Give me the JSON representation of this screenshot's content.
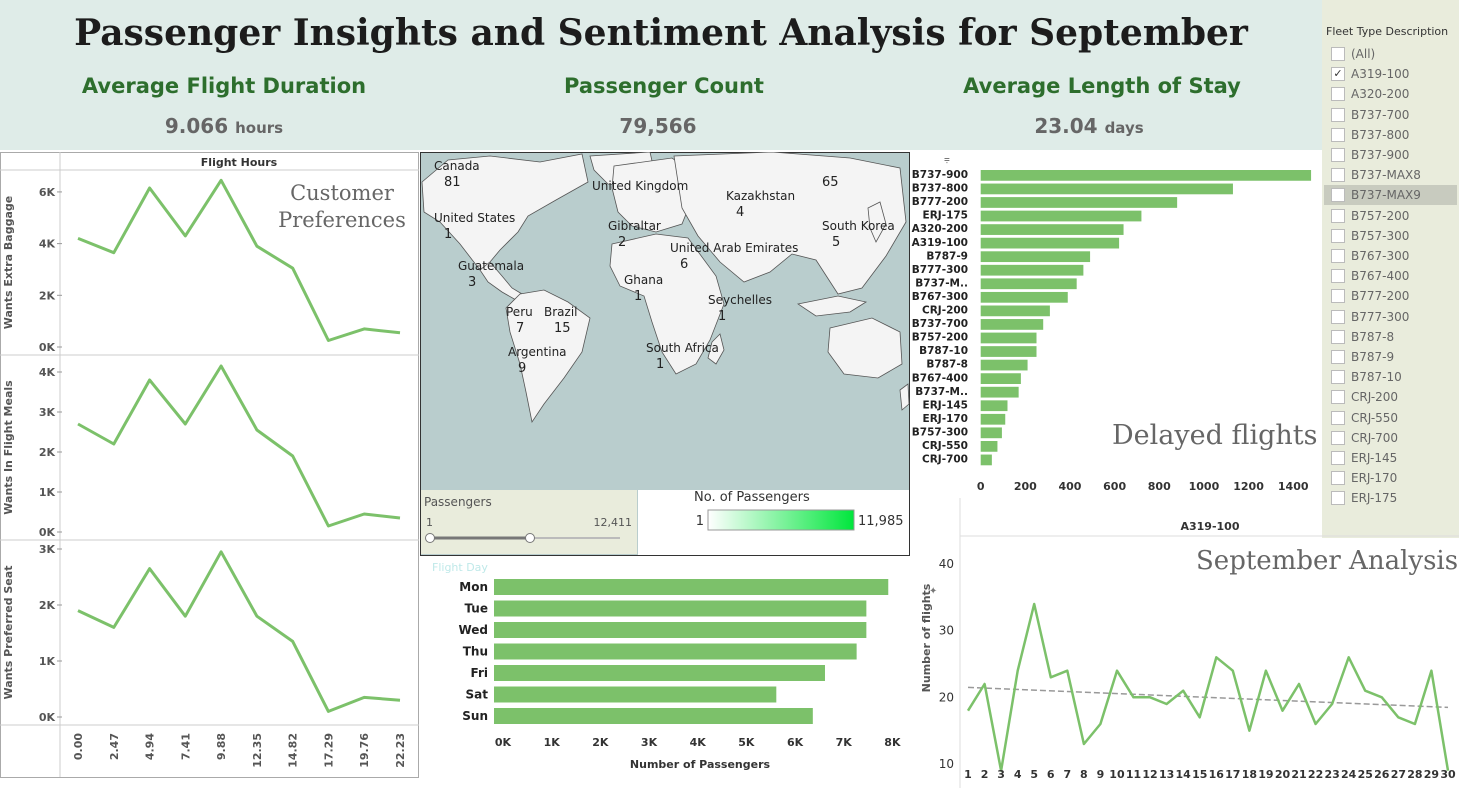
{
  "title": "Passenger Insights and Sentiment Analysis for September",
  "kpis": {
    "flight_duration": {
      "label": "Average Flight Duration",
      "value": "9.066",
      "unit": "hours"
    },
    "passenger_count": {
      "label": "Passenger Count",
      "value": "79,566"
    },
    "length_of_stay": {
      "label": "Average Length of Stay",
      "value": "23.04",
      "unit": "days"
    }
  },
  "filter": {
    "title": "Fleet Type Description",
    "items": [
      {
        "label": "(All)",
        "checked": false,
        "highlighted": false
      },
      {
        "label": "A319-100",
        "checked": true,
        "highlighted": false
      },
      {
        "label": "A320-200",
        "checked": false,
        "highlighted": false
      },
      {
        "label": "B737-700",
        "checked": false,
        "highlighted": false
      },
      {
        "label": "B737-800",
        "checked": false,
        "highlighted": false
      },
      {
        "label": "B737-900",
        "checked": false,
        "highlighted": false
      },
      {
        "label": "B737-MAX8",
        "checked": false,
        "highlighted": false
      },
      {
        "label": "B737-MAX9",
        "checked": false,
        "highlighted": true
      },
      {
        "label": "B757-200",
        "checked": false,
        "highlighted": false
      },
      {
        "label": "B757-300",
        "checked": false,
        "highlighted": false
      },
      {
        "label": "B767-300",
        "checked": false,
        "highlighted": false
      },
      {
        "label": "B767-400",
        "checked": false,
        "highlighted": false
      },
      {
        "label": "B777-200",
        "checked": false,
        "highlighted": false
      },
      {
        "label": "B777-300",
        "checked": false,
        "highlighted": false
      },
      {
        "label": "B787-8",
        "checked": false,
        "highlighted": false
      },
      {
        "label": "B787-9",
        "checked": false,
        "highlighted": false
      },
      {
        "label": "B787-10",
        "checked": false,
        "highlighted": false
      },
      {
        "label": "CRJ-200",
        "checked": false,
        "highlighted": false
      },
      {
        "label": "CRJ-550",
        "checked": false,
        "highlighted": false
      },
      {
        "label": "CRJ-700",
        "checked": false,
        "highlighted": false
      },
      {
        "label": "ERJ-145",
        "checked": false,
        "highlighted": false
      },
      {
        "label": "ERJ-170",
        "checked": false,
        "highlighted": false
      },
      {
        "label": "ERJ-175",
        "checked": false,
        "highlighted": false
      }
    ]
  },
  "overlays": {
    "customer_preferences": "Customer Preferences",
    "customer_preferences_line1": "Customer",
    "customer_preferences_line2": "Preferences",
    "delayed_flights": "Delayed flights",
    "september_analysis": "September Analysis"
  },
  "map": {
    "labels": [
      {
        "name": "Canada",
        "value": "81"
      },
      {
        "name": "United States",
        "value": "1"
      },
      {
        "name": "Guatemala",
        "value": "3"
      },
      {
        "name": "Peru",
        "value": "7"
      },
      {
        "name": "Brazil",
        "value": "15"
      },
      {
        "name": "Argentina",
        "value": "9"
      },
      {
        "name": "United Kingdom",
        "value": ""
      },
      {
        "name": "Gibraltar",
        "value": "2"
      },
      {
        "name": "Ghana",
        "value": "1"
      },
      {
        "name": "Kazakhstan",
        "value": "4"
      },
      {
        "name": "United Arab Emirates",
        "value": "6"
      },
      {
        "name": "Seychelles",
        "value": "1"
      },
      {
        "name": "South Africa",
        "value": "1"
      },
      {
        "name": "South Korea",
        "value": "5"
      },
      {
        "name": "",
        "value": "65"
      }
    ],
    "passengers_filter": {
      "label": "Passengers",
      "min": "1",
      "max": "12,411"
    },
    "legend": {
      "label": "No. of Passengers",
      "min": "1",
      "max": "11,985",
      "color_low": "#ffffff",
      "color_high": "#00e63c"
    }
  },
  "chart_data": [
    {
      "id": "customer_preferences",
      "type": "line",
      "title": "Flight Hours",
      "x": [
        0.0,
        2.47,
        4.94,
        7.41,
        9.88,
        12.35,
        14.82,
        17.29,
        19.76,
        22.23
      ],
      "x_tick_labels": [
        "0.00",
        "2.47",
        "4.94",
        "7.41",
        "9.88",
        "12.35",
        "14.82",
        "17.29",
        "19.76",
        "22.23"
      ],
      "color": "#7cc16a",
      "panels": [
        {
          "ylabel": "Wants Extra Baggage",
          "ylim": [
            0,
            6500
          ],
          "yticks": [
            0,
            2000,
            4000,
            6000
          ],
          "ytick_labels": [
            "0K",
            "2K",
            "4K",
            "6K"
          ],
          "values": [
            4200,
            3650,
            6150,
            4300,
            6450,
            3900,
            3050,
            250,
            700,
            550
          ]
        },
        {
          "ylabel": "Wants In Flight Meals",
          "ylim": [
            0,
            4200
          ],
          "yticks": [
            0,
            1000,
            2000,
            3000,
            4000
          ],
          "ytick_labels": [
            "0K",
            "1K",
            "2K",
            "3K",
            "4K"
          ],
          "values": [
            2700,
            2200,
            3800,
            2700,
            4150,
            2550,
            1900,
            150,
            450,
            350
          ]
        },
        {
          "ylabel": "Wants Preferred Seat",
          "ylim": [
            0,
            3000
          ],
          "yticks": [
            0,
            1000,
            2000,
            3000
          ],
          "ytick_labels": [
            "0K",
            "1K",
            "2K",
            "3K"
          ],
          "values": [
            1900,
            1600,
            2650,
            1800,
            2950,
            1800,
            1350,
            100,
            350,
            300
          ]
        }
      ]
    },
    {
      "id": "delayed_flights",
      "type": "bar",
      "orientation": "horizontal",
      "categories": [
        "B737-900",
        "B737-800",
        "B777-200",
        "ERJ-175",
        "A320-200",
        "A319-100",
        "B787-9",
        "B777-300",
        "B737-M..",
        "B767-300",
        "CRJ-200",
        "B737-700",
        "B757-200",
        "B787-10",
        "B787-8",
        "B767-400",
        "B737-M..",
        "ERJ-145",
        "ERJ-170",
        "B757-300",
        "CRJ-550",
        "CRJ-700"
      ],
      "values": [
        1480,
        1130,
        880,
        720,
        640,
        620,
        490,
        460,
        430,
        390,
        310,
        280,
        250,
        250,
        210,
        180,
        170,
        120,
        110,
        95,
        75,
        50
      ],
      "xlim": [
        -30,
        1520
      ],
      "xticks": [
        0,
        200,
        400,
        600,
        800,
        1000,
        1200,
        1400
      ],
      "color": "#7cc16a"
    },
    {
      "id": "flight_day",
      "type": "bar",
      "orientation": "horizontal",
      "title": "Flight Day",
      "categories": [
        "Mon",
        "Tue",
        "Wed",
        "Thu",
        "Fri",
        "Sat",
        "Sun"
      ],
      "values": [
        8100,
        7650,
        7650,
        7450,
        6800,
        5800,
        6550
      ],
      "xlabel": "Number of Passengers",
      "xlim": [
        0,
        8300
      ],
      "xticks": [
        0,
        1000,
        2000,
        3000,
        4000,
        5000,
        6000,
        7000,
        8000
      ],
      "xtick_labels": [
        "0K",
        "1K",
        "2K",
        "3K",
        "4K",
        "5K",
        "6K",
        "7K",
        "8K"
      ],
      "color": "#7cc16a"
    },
    {
      "id": "september_analysis",
      "type": "line",
      "title": "A319-100",
      "x": [
        1,
        2,
        3,
        4,
        5,
        6,
        7,
        8,
        9,
        10,
        11,
        12,
        13,
        14,
        15,
        16,
        17,
        18,
        19,
        20,
        21,
        22,
        23,
        24,
        25,
        26,
        27,
        28,
        29,
        30
      ],
      "values": [
        18,
        22,
        9,
        24,
        34,
        23,
        24,
        13,
        16,
        24,
        20,
        20,
        19,
        21,
        17,
        26,
        24,
        15,
        24,
        18,
        22,
        16,
        19,
        26,
        21,
        20,
        17,
        16,
        24,
        9
      ],
      "trend": [
        21.5,
        18.5
      ],
      "ylabel": "Number of flights",
      "ylim": [
        10,
        43
      ],
      "yticks": [
        10,
        20,
        30,
        40
      ],
      "color": "#7cc16a",
      "trend_color": "#999999"
    }
  ]
}
